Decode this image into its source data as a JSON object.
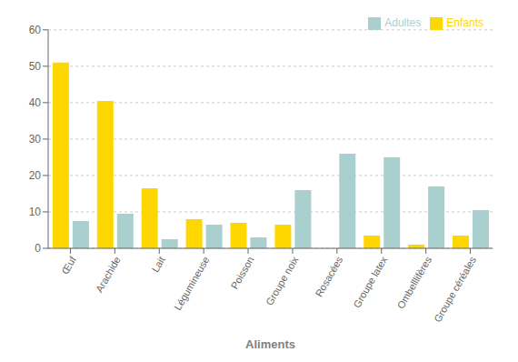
{
  "chart_data": {
    "type": "bar",
    "xlabel": "Aliments",
    "categories": [
      "Œuf",
      "Arachide",
      "Lait",
      "Légumineuse",
      "Poisson",
      "Groupe noix",
      "Rosacées",
      "Groupe latex",
      "Ombelllifères",
      "Groupe céréales"
    ],
    "series": [
      {
        "name": "Enfants",
        "color": "#FFD700",
        "values": [
          51,
          40.5,
          16.5,
          8,
          7,
          6.5,
          0,
          3.5,
          1,
          3.5
        ]
      },
      {
        "name": "Adultes",
        "color": "#AACFCF",
        "values": [
          7.5,
          9.5,
          2.5,
          6.5,
          3,
          16,
          26,
          25,
          17,
          10.5
        ]
      }
    ],
    "ylim": [
      0,
      60
    ],
    "yticks": [
      0,
      10,
      20,
      30,
      40,
      50,
      60
    ],
    "grid": true,
    "legend": "upper right"
  }
}
